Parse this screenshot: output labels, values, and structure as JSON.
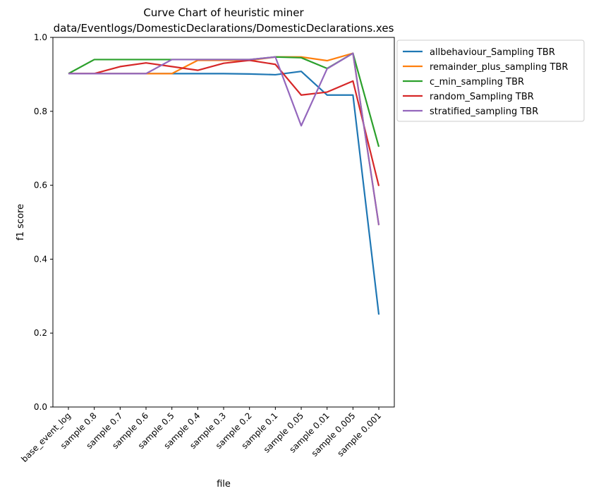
{
  "chart_data": {
    "type": "line",
    "title": "Curve Chart of heuristic miner",
    "subtitle": "data/Eventlogs/DomesticDeclarations/DomesticDeclarations.xes",
    "xlabel": "file",
    "ylabel": "f1 score",
    "ylim": [
      0,
      1
    ],
    "yticks": [
      "0.0",
      "0.2",
      "0.4",
      "0.6",
      "0.8",
      "1.0"
    ],
    "grid": false,
    "legend_position": "outside-top-right",
    "categories": [
      "base_event_log",
      "sample 0.8",
      "sample 0.7",
      "sample 0.6",
      "sample 0.5",
      "sample 0.4",
      "sample 0.3",
      "sample 0.2",
      "sample 0.1",
      "sample 0.05",
      "sample 0.01",
      "sample 0.005",
      "sample 0.001"
    ],
    "series": [
      {
        "name": "allbehaviour_Sampling TBR",
        "color": "#1f77b4",
        "values": [
          0.902,
          0.902,
          0.902,
          0.902,
          0.902,
          0.902,
          0.902,
          0.901,
          0.899,
          0.908,
          0.844,
          0.844,
          0.25
        ]
      },
      {
        "name": "remainder_plus_sampling TBR",
        "color": "#ff7f0e",
        "values": [
          0.902,
          0.902,
          0.902,
          0.902,
          0.902,
          0.938,
          0.938,
          0.938,
          0.947,
          0.947,
          0.937,
          0.957,
          0.492
        ]
      },
      {
        "name": "c_min_sampling TBR",
        "color": "#2ca02c",
        "values": [
          0.902,
          0.94,
          0.94,
          0.94,
          0.94,
          0.94,
          0.94,
          0.94,
          0.947,
          0.945,
          0.916,
          0.957,
          0.704
        ]
      },
      {
        "name": "random_Sampling TBR",
        "color": "#d62728",
        "values": [
          0.902,
          0.902,
          0.921,
          0.931,
          0.921,
          0.911,
          0.93,
          0.938,
          0.927,
          0.844,
          0.852,
          0.882,
          0.598
        ]
      },
      {
        "name": "stratified_sampling TBR",
        "color": "#9467bd",
        "values": [
          0.902,
          0.902,
          0.902,
          0.902,
          0.94,
          0.94,
          0.94,
          0.94,
          0.947,
          0.761,
          0.915,
          0.957,
          0.492
        ]
      }
    ]
  }
}
